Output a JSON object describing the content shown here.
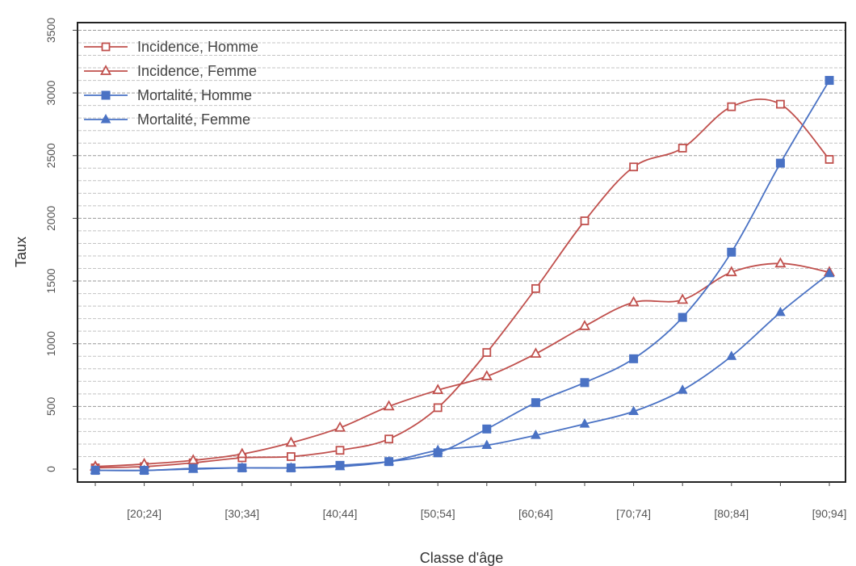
{
  "chart_data": {
    "type": "line",
    "title": "",
    "xlabel": "Classe d'âge",
    "ylabel": "Taux",
    "x": [
      "[15;19]",
      "[20;24]",
      "[25;29]",
      "[30;34]",
      "[35;39]",
      "[40;44]",
      "[45;49]",
      "[50;54]",
      "[55;59]",
      "[60;64]",
      "[65;69]",
      "[70;74]",
      "[75;79]",
      "[80;84]",
      "[85;89]",
      "[90;94]"
    ],
    "xticks_shown": [
      "[20;24]",
      "[30;34]",
      "[40;44]",
      "[50;54]",
      "[60;64]",
      "[70;74]",
      "[80;84]",
      "[90;94]"
    ],
    "yticks": [
      0,
      500,
      1000,
      1500,
      2000,
      2500,
      3000,
      3500
    ],
    "ylim": [
      0,
      3500
    ],
    "minor_grid_step": 100,
    "grid": true,
    "legend_position": "top-left",
    "series": [
      {
        "name": "Incidence, Homme",
        "color": "#c0504d",
        "marker": "open-square",
        "values": [
          10,
          20,
          50,
          90,
          100,
          150,
          240,
          490,
          930,
          1440,
          1980,
          2410,
          2560,
          2890,
          2910,
          2470
        ]
      },
      {
        "name": "Incidence, Femme",
        "color": "#c0504d",
        "marker": "open-triangle",
        "values": [
          20,
          40,
          70,
          120,
          210,
          330,
          500,
          630,
          740,
          920,
          1140,
          1330,
          1350,
          1570,
          1640,
          1570
        ]
      },
      {
        "name": "Mortalité, Homme",
        "color": "#4a72c4",
        "marker": "filled-square",
        "values": [
          -10,
          -10,
          5,
          10,
          10,
          30,
          60,
          130,
          320,
          530,
          690,
          880,
          1210,
          1730,
          2440,
          3100
        ]
      },
      {
        "name": "Mortalité, Femme",
        "color": "#4a72c4",
        "marker": "filled-triangle",
        "values": [
          -10,
          -10,
          0,
          10,
          10,
          20,
          60,
          150,
          190,
          270,
          360,
          460,
          630,
          900,
          1250,
          1560
        ]
      }
    ]
  }
}
